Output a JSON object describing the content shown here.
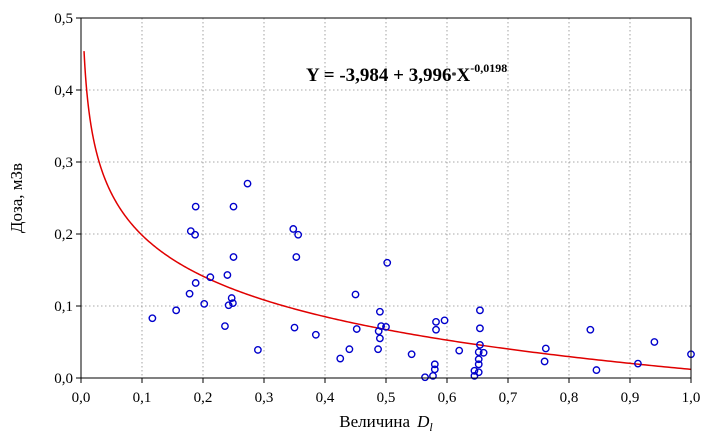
{
  "chart_data": {
    "type": "scatter",
    "title": "",
    "xlabel": "Величина",
    "xlabel_symbol": "D",
    "xlabel_subscript": "l",
    "ylabel": "Доза, мЗв",
    "xlim": [
      0.0,
      1.0
    ],
    "ylim": [
      0.0,
      0.5
    ],
    "x_ticks": [
      "0,0",
      "0,1",
      "0,2",
      "0,3",
      "0,4",
      "0,5",
      "0,6",
      "0,7",
      "0,8",
      "0,9",
      "1,0"
    ],
    "y_ticks": [
      "0,0",
      "0,1",
      "0,2",
      "0,3",
      "0,4",
      "0,5"
    ],
    "grid": true,
    "equation": {
      "main": "Y = -3,984 + 3,996",
      "dot": "*",
      "var": "X",
      "exponent": "-0,0198"
    },
    "fit_curve": {
      "a": -3.984,
      "b": 3.996,
      "c": -0.0198,
      "color": "#e00000"
    },
    "marker_color": "#0000cc",
    "points": [
      [
        0.117,
        0.083
      ],
      [
        0.156,
        0.094
      ],
      [
        0.178,
        0.117
      ],
      [
        0.18,
        0.204
      ],
      [
        0.187,
        0.199
      ],
      [
        0.188,
        0.238
      ],
      [
        0.188,
        0.132
      ],
      [
        0.202,
        0.103
      ],
      [
        0.212,
        0.14
      ],
      [
        0.236,
        0.072
      ],
      [
        0.24,
        0.143
      ],
      [
        0.242,
        0.101
      ],
      [
        0.247,
        0.111
      ],
      [
        0.249,
        0.104
      ],
      [
        0.25,
        0.168
      ],
      [
        0.25,
        0.238
      ],
      [
        0.273,
        0.27
      ],
      [
        0.29,
        0.039
      ],
      [
        0.348,
        0.207
      ],
      [
        0.35,
        0.07
      ],
      [
        0.353,
        0.168
      ],
      [
        0.356,
        0.199
      ],
      [
        0.385,
        0.06
      ],
      [
        0.425,
        0.027
      ],
      [
        0.44,
        0.04
      ],
      [
        0.45,
        0.116
      ],
      [
        0.452,
        0.068
      ],
      [
        0.487,
        0.04
      ],
      [
        0.488,
        0.065
      ],
      [
        0.49,
        0.055
      ],
      [
        0.49,
        0.092
      ],
      [
        0.492,
        0.072
      ],
      [
        0.5,
        0.071
      ],
      [
        0.502,
        0.16
      ],
      [
        0.542,
        0.033
      ],
      [
        0.564,
        0.001
      ],
      [
        0.577,
        0.003
      ],
      [
        0.58,
        0.012
      ],
      [
        0.58,
        0.019
      ],
      [
        0.582,
        0.067
      ],
      [
        0.582,
        0.078
      ],
      [
        0.596,
        0.08
      ],
      [
        0.62,
        0.038
      ],
      [
        0.645,
        0.003
      ],
      [
        0.645,
        0.01
      ],
      [
        0.652,
        0.008
      ],
      [
        0.652,
        0.019
      ],
      [
        0.652,
        0.026
      ],
      [
        0.652,
        0.036
      ],
      [
        0.654,
        0.046
      ],
      [
        0.654,
        0.069
      ],
      [
        0.654,
        0.094
      ],
      [
        0.66,
        0.035
      ],
      [
        0.76,
        0.023
      ],
      [
        0.762,
        0.041
      ],
      [
        0.835,
        0.067
      ],
      [
        0.845,
        0.011
      ],
      [
        0.913,
        0.02
      ],
      [
        0.94,
        0.05
      ],
      [
        1.0,
        0.033
      ]
    ]
  }
}
